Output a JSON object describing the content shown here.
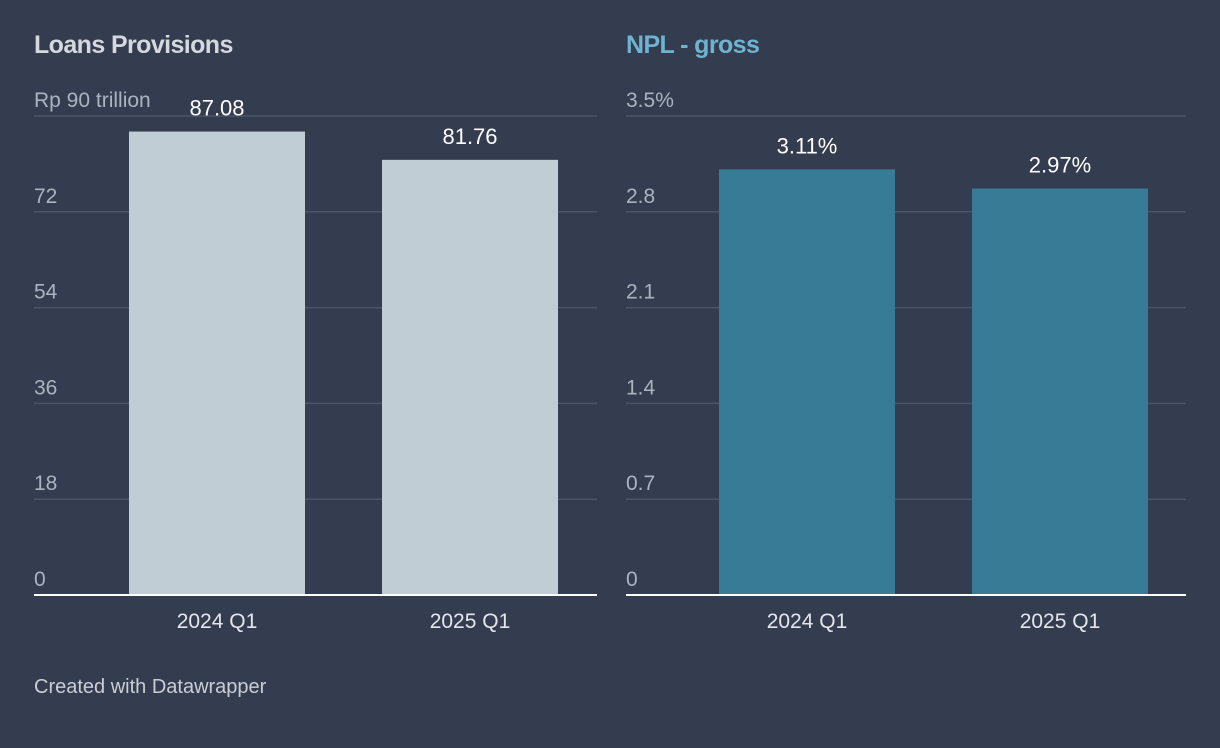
{
  "chart_data": [
    {
      "type": "bar",
      "title": "Loans Provisions",
      "unit_prefix": "Rp ",
      "unit_suffix": " trillion",
      "categories": [
        "2024 Q1",
        "2025 Q1"
      ],
      "values": [
        87.08,
        81.76
      ],
      "value_labels": [
        "87.08",
        "81.76"
      ],
      "yticks": [
        0,
        18,
        36,
        54,
        72,
        90
      ],
      "ytick_labels": [
        "0",
        "18",
        "36",
        "54",
        "72",
        "Rp 90 trillion"
      ],
      "ylim": [
        0,
        90
      ],
      "xlabel": "",
      "ylabel": "",
      "grid": true,
      "colors": {
        "bar": "#c1cdd4",
        "title": "#d3d9df"
      }
    },
    {
      "type": "bar",
      "title": "NPL - gross",
      "unit_suffix": "%",
      "categories": [
        "2024 Q1",
        "2025 Q1"
      ],
      "values": [
        3.11,
        2.97
      ],
      "value_labels": [
        "3.11%",
        "2.97%"
      ],
      "yticks": [
        0,
        0.7,
        1.4,
        2.1,
        2.8,
        3.5
      ],
      "ytick_labels": [
        "0",
        "0.7",
        "1.4",
        "2.1",
        "2.8",
        "3.5%"
      ],
      "ylim": [
        0,
        3.5
      ],
      "xlabel": "",
      "ylabel": "",
      "grid": true,
      "colors": {
        "bar": "#387b96",
        "title": "#6eb4d0"
      }
    }
  ],
  "footer": {
    "text": "Created with Datawrapper"
  }
}
